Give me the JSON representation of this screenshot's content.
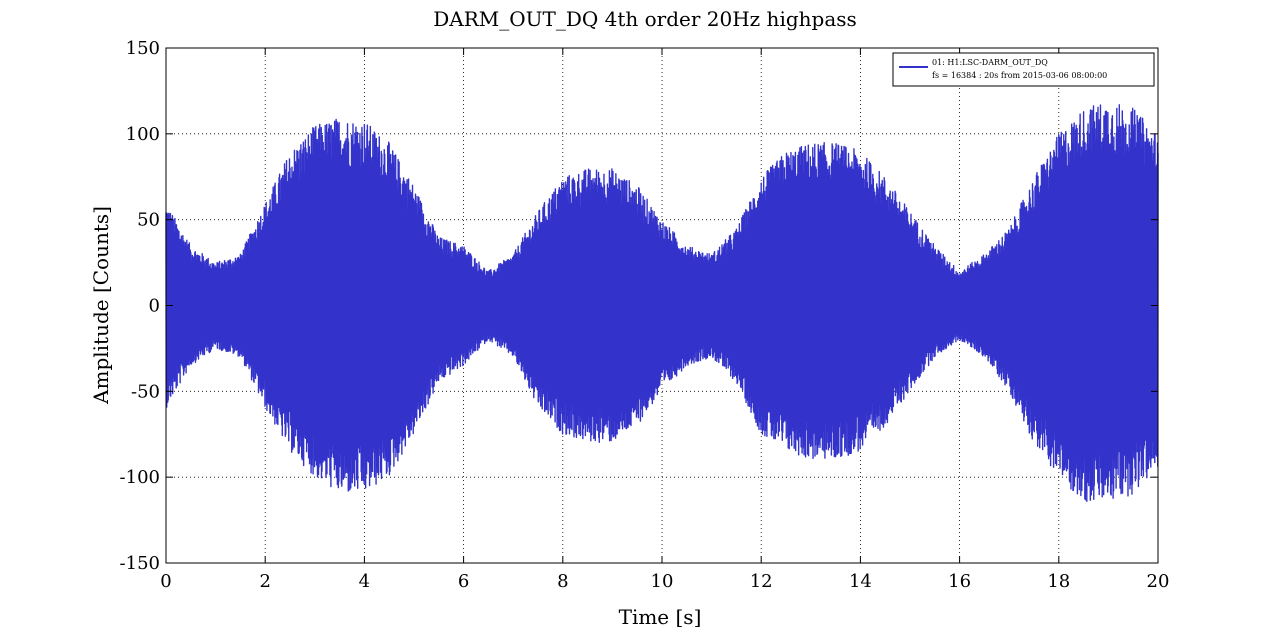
{
  "chart_data": {
    "type": "line",
    "title": "DARM_OUT_DQ 4th order 20Hz highpass",
    "xlabel": "Time [s]",
    "ylabel": "Amplitude [Counts]",
    "xlim": [
      0,
      20
    ],
    "ylim": [
      -150,
      150
    ],
    "grid": true,
    "grid_style": "dotted",
    "legend_position": "top-right",
    "xticks": [
      0,
      2,
      4,
      6,
      8,
      10,
      12,
      14,
      16,
      18,
      20
    ],
    "yticks": [
      -150,
      -100,
      -50,
      0,
      50,
      100,
      150
    ],
    "xtick_labels": [
      "0",
      "2",
      "4",
      "6",
      "8",
      "10",
      "12",
      "14",
      "16",
      "18",
      "20"
    ],
    "ytick_labels": [
      "-150",
      "-100",
      "-50",
      "0",
      "50",
      "100",
      "150"
    ],
    "series": [
      {
        "name": "01: H1:LSC-DARM_OUT_DQ",
        "legend_detail": "fs = 16384 : 20s from 2015-03-06 08:00:00",
        "color": "#3333cc",
        "envelope_times": [
          0,
          0.5,
          1.0,
          1.5,
          2.0,
          2.5,
          3.0,
          3.5,
          4.0,
          4.5,
          5.0,
          5.5,
          6.0,
          6.5,
          7.0,
          7.5,
          8.0,
          8.5,
          9.0,
          9.5,
          10.0,
          10.5,
          11.0,
          11.5,
          12.0,
          12.5,
          13.0,
          13.5,
          14.0,
          14.5,
          15.0,
          15.5,
          16.0,
          16.5,
          17.0,
          17.5,
          18.0,
          18.5,
          19.0,
          19.5,
          20.0
        ],
        "envelope_upper": [
          60,
          35,
          25,
          30,
          60,
          90,
          105,
          110,
          108,
          95,
          70,
          40,
          35,
          20,
          30,
          55,
          75,
          80,
          80,
          70,
          50,
          35,
          30,
          45,
          75,
          90,
          95,
          95,
          90,
          75,
          55,
          35,
          20,
          30,
          45,
          75,
          100,
          115,
          120,
          115,
          100
        ],
        "envelope_lower": [
          -60,
          -35,
          -25,
          -30,
          -60,
          -85,
          -100,
          -110,
          -110,
          -100,
          -75,
          -45,
          -35,
          -20,
          -30,
          -60,
          -75,
          -80,
          -80,
          -70,
          -50,
          -35,
          -30,
          -45,
          -75,
          -85,
          -90,
          -90,
          -85,
          -70,
          -50,
          -30,
          -20,
          -30,
          -50,
          -80,
          -100,
          -115,
          -115,
          -110,
          -95
        ]
      }
    ]
  }
}
